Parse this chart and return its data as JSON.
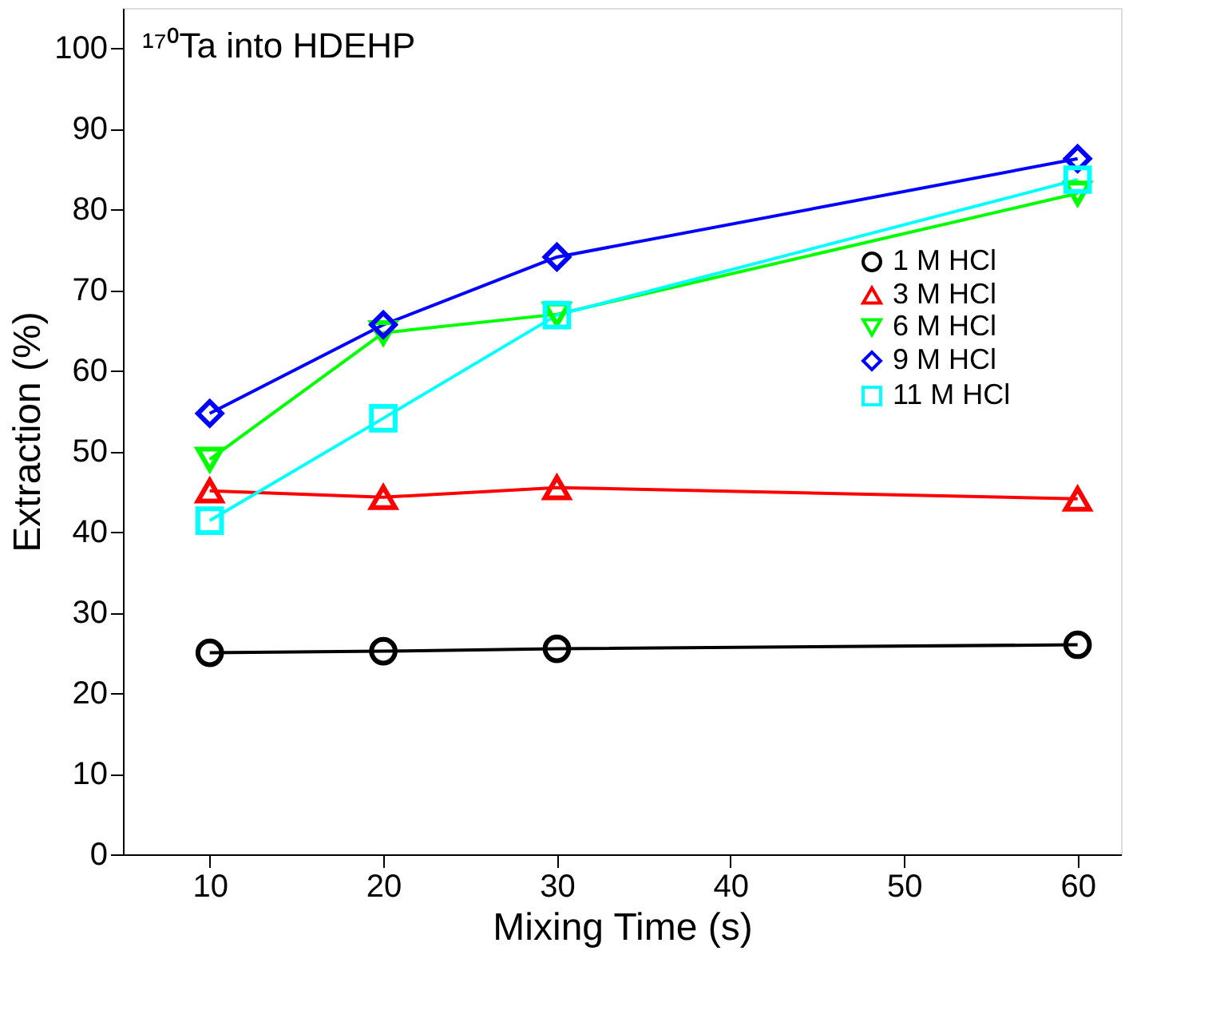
{
  "chart_data": {
    "type": "line",
    "xlabel": "Mixing Time (s)",
    "ylabel": "Extraction (%)",
    "annotations": [
      "¹⁷⁰Ta into HDEHP"
    ],
    "x": [
      10,
      20,
      30,
      60
    ],
    "xlim": [
      5,
      62.5
    ],
    "xticks": [
      10,
      20,
      30,
      40,
      50,
      60
    ],
    "ylim": [
      0,
      105
    ],
    "yticks": [
      0,
      10,
      20,
      30,
      40,
      50,
      60,
      70,
      80,
      90,
      100
    ],
    "grid": false,
    "legend": "right",
    "series": [
      {
        "name": "1 M HCl",
        "color": "#000000",
        "marker": "circle",
        "values": [
          25,
          25.2,
          25.5,
          26
        ]
      },
      {
        "name": "3 M HCl",
        "color": "#ff0000",
        "marker": "triangle",
        "values": [
          45.1,
          44.3,
          45.5,
          44.1
        ]
      },
      {
        "name": "6 M HCl",
        "color": "#00ff00",
        "marker": "triangle-down",
        "values": [
          49,
          64.7,
          67,
          82
        ]
      },
      {
        "name": "9 M HCl",
        "color": "#0000ff",
        "marker": "diamond",
        "values": [
          54.7,
          65.7,
          74.1,
          86.3
        ]
      },
      {
        "name": "11 M HCl",
        "color": "#00ffff",
        "marker": "square",
        "values": [
          41.4,
          54.1,
          66.9,
          83.7
        ]
      }
    ]
  }
}
